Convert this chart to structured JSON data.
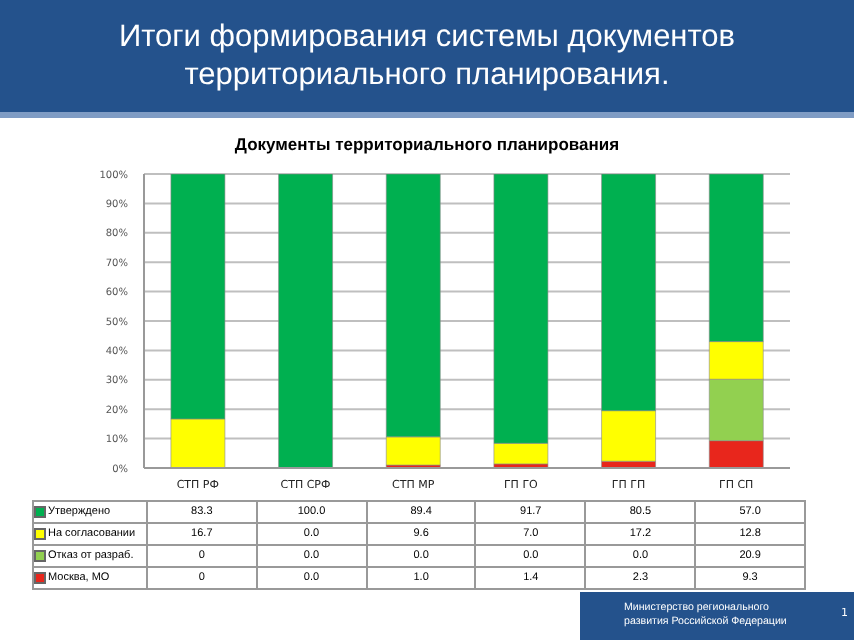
{
  "chart_data": {
    "type": "bar",
    "title": "Итоги формирования системы документов территориального планирования.",
    "subtitle": "Документы территориального планирования",
    "categories": [
      "СТП РФ",
      "СТП СРФ",
      "СТП МР",
      "ГП ГО",
      "ГП ГП",
      "ГП СП"
    ],
    "stacked": true,
    "ylim": [
      0,
      100
    ],
    "yticks": [
      {
        "value": 0,
        "label": "0%"
      },
      {
        "value": 10,
        "label": "10%"
      },
      {
        "value": 20,
        "label": "20%"
      },
      {
        "value": 30,
        "label": "30%"
      },
      {
        "value": 40,
        "label": "40%"
      },
      {
        "value": 50,
        "label": "50%"
      },
      {
        "value": 60,
        "label": "60%"
      },
      {
        "value": 70,
        "label": "70%"
      },
      {
        "value": 80,
        "label": "80%"
      },
      {
        "value": 90,
        "label": "90%"
      },
      {
        "value": 100,
        "label": "100%"
      }
    ],
    "grid": "y",
    "legend": "bottom",
    "series": [
      {
        "name": "Москва, МО",
        "color": "#e8261c",
        "values": [
          0,
          0,
          1.0,
          1.4,
          2.3,
          9.3
        ],
        "value_labels": [
          "0",
          "0.0",
          "1.0",
          "1.4",
          "2.3",
          "9.3"
        ]
      },
      {
        "name": "Отказ от разраб.",
        "color": "#92d050",
        "values": [
          0,
          0,
          0,
          0,
          0,
          20.9
        ],
        "value_labels": [
          "0",
          "0.0",
          "0.0",
          "0.0",
          "0.0",
          "20.9"
        ]
      },
      {
        "name": "На согласовании",
        "color": "#ffff00",
        "values": [
          16.7,
          0,
          9.6,
          7.0,
          17.2,
          12.8
        ],
        "value_labels": [
          "16.7",
          "0.0",
          "9.6",
          "7.0",
          "17.2",
          "12.8"
        ]
      },
      {
        "name": "Утверждено",
        "color": "#00b050",
        "values": [
          83.3,
          100.0,
          89.4,
          91.7,
          80.5,
          57.0
        ],
        "value_labels": [
          "83.3",
          "100.0",
          "89.4",
          "91.7",
          "80.5",
          "57.0"
        ]
      }
    ],
    "annotations": [
      "Министерство регионального развития Российской Федерации",
      "1"
    ]
  }
}
